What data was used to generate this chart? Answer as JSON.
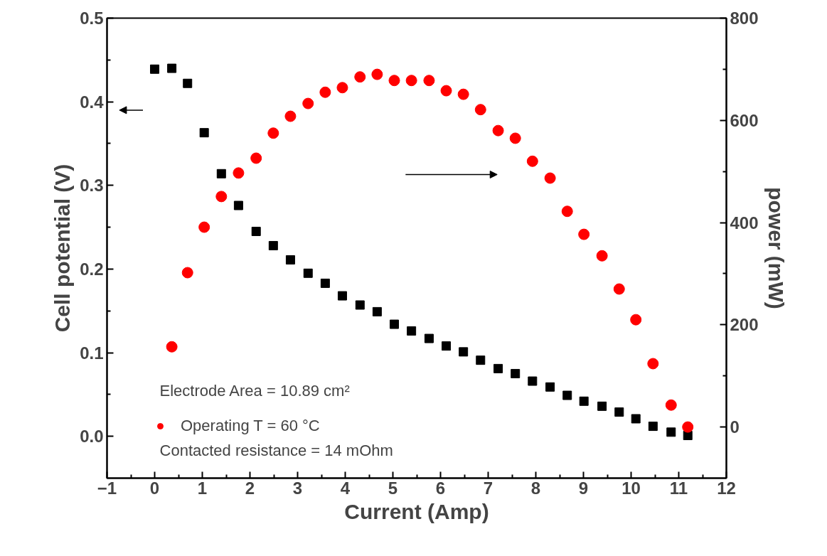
{
  "chart_data": {
    "type": "scatter",
    "xlabel": "Current (Amp)",
    "ylabel": "Cell potential (V)",
    "y2label": "power (mW)",
    "xlim": [
      -1,
      12
    ],
    "xticks": [
      -1,
      0,
      1,
      2,
      3,
      4,
      5,
      6,
      7,
      8,
      9,
      10,
      11,
      12
    ],
    "ylim": [
      -0.05,
      0.5
    ],
    "yticks": [
      {
        "value": 0.0,
        "label": "0.0"
      },
      0.1,
      0.2,
      0.3,
      0.4,
      0.5
    ],
    "y2lim": [
      -100,
      800
    ],
    "y2ticks": [
      0,
      200,
      400,
      600,
      800
    ],
    "grid": false,
    "legend": "bottom left",
    "series": [
      {
        "color": "#000000",
        "marker": "square",
        "x": [
          0,
          0.36,
          0.69,
          1.04,
          1.4,
          1.76,
          2.13,
          2.49,
          2.85,
          3.22,
          3.58,
          3.94,
          4.31,
          4.67,
          5.03,
          5.39,
          5.76,
          6.12,
          6.48,
          6.84,
          7.21,
          7.57,
          7.93,
          8.3,
          8.66,
          9.01,
          9.39,
          9.75,
          10.1,
          10.46,
          10.84,
          11.19
        ],
        "values": [
          0.439,
          0.44,
          0.422,
          0.363,
          0.314,
          0.276,
          0.245,
          0.228,
          0.211,
          0.195,
          0.183,
          0.168,
          0.157,
          0.149,
          0.134,
          0.126,
          0.117,
          0.108,
          0.101,
          0.091,
          0.081,
          0.075,
          0.066,
          0.059,
          0.049,
          0.042,
          0.036,
          0.029,
          0.021,
          0.012,
          0.005,
          0.001
        ]
      },
      {
        "name": "Operating T = 60 °C",
        "color": "#ff0000",
        "marker": "circle",
        "axis": "y2",
        "x": [
          0.36,
          0.69,
          1.04,
          1.4,
          1.76,
          2.13,
          2.49,
          2.85,
          3.22,
          3.58,
          3.94,
          4.31,
          4.67,
          5.03,
          5.39,
          5.76,
          6.12,
          6.48,
          6.84,
          7.21,
          7.57,
          7.93,
          8.3,
          8.66,
          9.01,
          9.39,
          9.75,
          10.1,
          10.46,
          10.84,
          11.19
        ],
        "values": [
          157,
          302,
          391,
          451,
          497,
          526,
          575,
          608,
          633,
          655,
          664,
          685,
          690,
          678,
          678,
          678,
          658,
          651,
          621,
          580,
          565,
          520,
          487,
          422,
          377,
          335,
          270,
          210,
          124,
          43,
          0
        ]
      }
    ],
    "annotations": [
      "Electrode Area = 10.89 cm²",
      "Contacted resistance = 14 mOhm"
    ]
  }
}
